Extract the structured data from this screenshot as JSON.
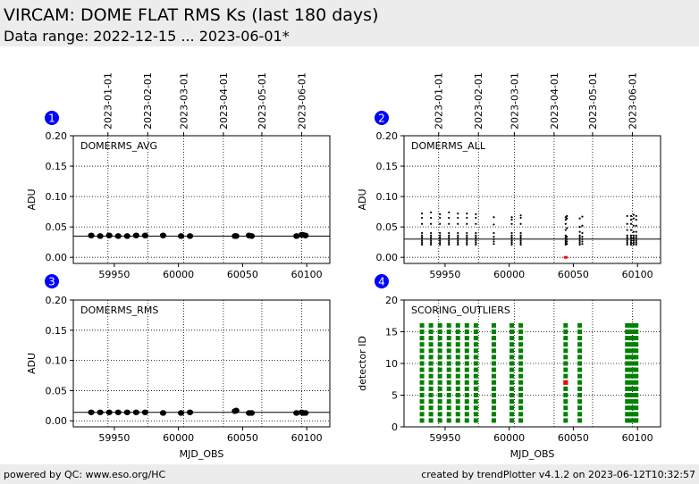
{
  "header": {
    "title": "VIRCAM: DOME FLAT RMS Ks (last 180 days)",
    "subtitle": "Data range: 2022-12-15 ... 2023-06-01*"
  },
  "footer": {
    "left": "powered by QC: www.eso.org/HC",
    "right": "created by trendPlotter v4.1.2 on 2023-06-12T10:32:57"
  },
  "date_ticks": {
    "labels": [
      "2023-01-01",
      "2023-02-01",
      "2023-03-01",
      "2023-04-01",
      "2023-05-01",
      "2023-06-01"
    ],
    "mjd": [
      59945,
      59976,
      60004,
      60035,
      60065,
      60096
    ]
  },
  "colors": {
    "marker": "#000000",
    "outlier": "#ff0000",
    "score_ok": "#008000",
    "badge": "#0000ff"
  },
  "chart_data": [
    {
      "panel": "1",
      "type": "scatter",
      "label": "DOMERMS_AVG",
      "ylabel": "ADU",
      "ylim": [
        -0.01,
        0.2
      ],
      "xlim": [
        59918,
        60118
      ],
      "yticks": [
        "0.00",
        "0.05",
        "0.10",
        "0.15",
        "0.20"
      ],
      "ytick_values": [
        0.0,
        0.05,
        0.1,
        0.15,
        0.2
      ],
      "xticks": [
        "59950",
        "60000",
        "60050",
        "60100"
      ],
      "xtick_values": [
        59950,
        60000,
        60050,
        60100
      ],
      "reference_line": 0.035,
      "marker": "large-dot",
      "x": [
        59932,
        59939,
        59946,
        59953,
        59960,
        59967,
        59974,
        59988,
        60002,
        60009,
        60044,
        60045,
        60055,
        60057,
        60092,
        60096,
        60097,
        60099
      ],
      "y": [
        0.036,
        0.035,
        0.036,
        0.035,
        0.035,
        0.036,
        0.036,
        0.036,
        0.035,
        0.035,
        0.035,
        0.035,
        0.036,
        0.035,
        0.035,
        0.037,
        0.037,
        0.036
      ]
    },
    {
      "panel": "2",
      "type": "scatter",
      "label": "DOMERMS_ALL",
      "ylabel": "ADU",
      "ylim": [
        -0.01,
        0.2
      ],
      "xlim": [
        59918,
        60118
      ],
      "yticks": [
        "0.00",
        "0.05",
        "0.10",
        "0.15",
        "0.20"
      ],
      "ytick_values": [
        0.0,
        0.05,
        0.1,
        0.15,
        0.2
      ],
      "xticks": [
        "59950",
        "60000",
        "60050",
        "60100"
      ],
      "xtick_values": [
        59950,
        60000,
        60050,
        60100
      ],
      "reference_line": 0.03,
      "marker": "small-dot",
      "columns": [
        {
          "x": 59932,
          "values": [
            0.021,
            0.024,
            0.027,
            0.03,
            0.033,
            0.036,
            0.04,
            0.055,
            0.065,
            0.072
          ]
        },
        {
          "x": 59939,
          "values": [
            0.021,
            0.024,
            0.027,
            0.03,
            0.033,
            0.036,
            0.04,
            0.055,
            0.065,
            0.074
          ]
        },
        {
          "x": 59946,
          "values": [
            0.021,
            0.024,
            0.027,
            0.03,
            0.033,
            0.036,
            0.04,
            0.055,
            0.065,
            0.071
          ]
        },
        {
          "x": 59953,
          "values": [
            0.021,
            0.024,
            0.027,
            0.03,
            0.033,
            0.036,
            0.04,
            0.055,
            0.065,
            0.074
          ]
        },
        {
          "x": 59960,
          "values": [
            0.021,
            0.024,
            0.027,
            0.03,
            0.033,
            0.036,
            0.04,
            0.055,
            0.065,
            0.072
          ]
        },
        {
          "x": 59967,
          "values": [
            0.021,
            0.024,
            0.027,
            0.03,
            0.033,
            0.036,
            0.04,
            0.055,
            0.065,
            0.072
          ]
        },
        {
          "x": 59974,
          "values": [
            0.021,
            0.024,
            0.027,
            0.03,
            0.033,
            0.036,
            0.04,
            0.055,
            0.065,
            0.071
          ]
        },
        {
          "x": 59988,
          "values": [
            0.022,
            0.026,
            0.03,
            0.034,
            0.04,
            0.054,
            0.066
          ]
        },
        {
          "x": 60002,
          "values": [
            0.021,
            0.024,
            0.027,
            0.03,
            0.033,
            0.036,
            0.04,
            0.055,
            0.062,
            0.066
          ]
        },
        {
          "x": 60009,
          "values": [
            0.021,
            0.024,
            0.027,
            0.03,
            0.033,
            0.036,
            0.04,
            0.055,
            0.065,
            0.069
          ]
        },
        {
          "x": 60044,
          "values": [
            0.021,
            0.024,
            0.027,
            0.03,
            0.033,
            0.036,
            0.045,
            0.055,
            0.062,
            0.066
          ]
        },
        {
          "x": 60045,
          "values": [
            0.022,
            0.026,
            0.03,
            0.034,
            0.048,
            0.064,
            0.068
          ]
        },
        {
          "x": 60055,
          "values": [
            0.021,
            0.024,
            0.027,
            0.03,
            0.033,
            0.036,
            0.042,
            0.05,
            0.064
          ]
        },
        {
          "x": 60057,
          "values": [
            0.022,
            0.026,
            0.03,
            0.034,
            0.04,
            0.052,
            0.067
          ]
        },
        {
          "x": 60092,
          "values": [
            0.021,
            0.024,
            0.027,
            0.03,
            0.033,
            0.036,
            0.045,
            0.055,
            0.068
          ]
        },
        {
          "x": 60095,
          "values": [
            0.021,
            0.024,
            0.027,
            0.03,
            0.033,
            0.036,
            0.045,
            0.055,
            0.062,
            0.068
          ]
        },
        {
          "x": 60097,
          "values": [
            0.021,
            0.024,
            0.027,
            0.03,
            0.033,
            0.036,
            0.042,
            0.052,
            0.064,
            0.07
          ]
        },
        {
          "x": 60099,
          "values": [
            0.021,
            0.024,
            0.027,
            0.03,
            0.033,
            0.036,
            0.042,
            0.052,
            0.062,
            0.068
          ]
        }
      ],
      "outliers": [
        {
          "x": 60044,
          "y": 0.0
        }
      ]
    },
    {
      "panel": "3",
      "type": "scatter",
      "label": "DOMERMS_RMS",
      "ylabel": "ADU",
      "xlabel": "MJD_OBS",
      "ylim": [
        -0.01,
        0.2
      ],
      "xlim": [
        59918,
        60118
      ],
      "yticks": [
        "0.00",
        "0.05",
        "0.10",
        "0.15",
        "0.20"
      ],
      "ytick_values": [
        0.0,
        0.05,
        0.1,
        0.15,
        0.2
      ],
      "xticks": [
        "59950",
        "60000",
        "60050",
        "60100"
      ],
      "xtick_values": [
        59950,
        60000,
        60050,
        60100
      ],
      "reference_line": 0.014,
      "marker": "large-dot",
      "x": [
        59932,
        59939,
        59946,
        59953,
        59960,
        59967,
        59974,
        59988,
        60002,
        60009,
        60044,
        60045,
        60055,
        60057,
        60092,
        60096,
        60097,
        60099
      ],
      "y": [
        0.014,
        0.014,
        0.014,
        0.014,
        0.014,
        0.014,
        0.014,
        0.013,
        0.013,
        0.014,
        0.016,
        0.017,
        0.013,
        0.013,
        0.013,
        0.014,
        0.013,
        0.013
      ]
    },
    {
      "panel": "4",
      "type": "scatter",
      "label": "SCORING_OUTLIERS",
      "ylabel": "detector ID",
      "xlabel": "MJD_OBS",
      "ylim": [
        0,
        20
      ],
      "xlim": [
        59918,
        60118
      ],
      "yticks": [
        "0",
        "5",
        "10",
        "15",
        "20"
      ],
      "ytick_values": [
        0,
        5,
        10,
        15,
        20
      ],
      "xticks": [
        "59950",
        "60000",
        "60050",
        "60100"
      ],
      "xtick_values": [
        59950,
        60000,
        60050,
        60100
      ],
      "marker": "square",
      "detectors": [
        1,
        2,
        3,
        4,
        5,
        6,
        7,
        8,
        9,
        10,
        11,
        12,
        13,
        14,
        15,
        16
      ],
      "x": [
        59932,
        59939,
        59946,
        59953,
        59960,
        59967,
        59974,
        59988,
        60002,
        60009,
        60044,
        60055,
        60092,
        60095,
        60097,
        60099
      ],
      "outliers": [
        {
          "x": 60044,
          "y": 7
        }
      ]
    }
  ]
}
